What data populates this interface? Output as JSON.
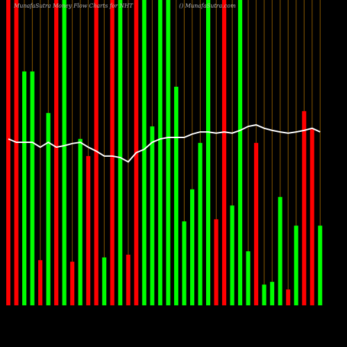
{
  "chart_data": {
    "type": "bar",
    "title": "MunafaSutra  Money Flow  Charts for NHT",
    "subtitle": "() MunafaSutra.com",
    "values": [
      100,
      100,
      76.6,
      76.6,
      14.8,
      63,
      100,
      100,
      14.3,
      54.5,
      48.9,
      100,
      15.7,
      100,
      100,
      16.6,
      100,
      100,
      58.6,
      100,
      100,
      71.6,
      27.5,
      38,
      53.2,
      100,
      28.2,
      100,
      32.7,
      100,
      17.7,
      53.2,
      6.8,
      7.7,
      35.5,
      5.2,
      26.1,
      63.6,
      57.7,
      26.1
    ],
    "bar_colors": [
      "#ff0000",
      "#ff0000",
      "#00ff00",
      "#00ff00",
      "#ff0000",
      "#00ff00",
      "#ff0000",
      "#00ff00",
      "#ff0000",
      "#00ff00",
      "#ff0000",
      "#ff0000",
      "#00ff00",
      "#ff0000",
      "#00ff00",
      "#ff0000",
      "#ff0000",
      "#00ff00",
      "#00ff00",
      "#00ff00",
      "#00ff00",
      "#00ff00",
      "#00ff00",
      "#00ff00",
      "#00ff00",
      "#00ff00",
      "#ff0000",
      "#ff0000",
      "#00ff00",
      "#00ff00",
      "#00ff00",
      "#ff0000",
      "#00ff00",
      "#00ff00",
      "#00ff00",
      "#ff0000",
      "#00ff00",
      "#ff0000",
      "#ff0000",
      "#00ff00"
    ],
    "line": {
      "color": "#ffffff",
      "values": [
        54.5,
        53.4,
        53.4,
        53.4,
        51.8,
        53.4,
        51.8,
        52.3,
        53,
        53.4,
        51.8,
        50.5,
        48.9,
        48.9,
        48.4,
        47,
        50,
        51.1,
        53.4,
        54.5,
        55,
        55,
        55,
        56.1,
        56.8,
        56.8,
        56.4,
        56.8,
        56.4,
        57.3,
        58.6,
        59.1,
        58,
        57.3,
        56.8,
        56.4,
        56.8,
        57.3,
        58,
        56.8
      ]
    },
    "ylim": [
      0,
      100
    ],
    "grid_color": "#8a5a00"
  }
}
